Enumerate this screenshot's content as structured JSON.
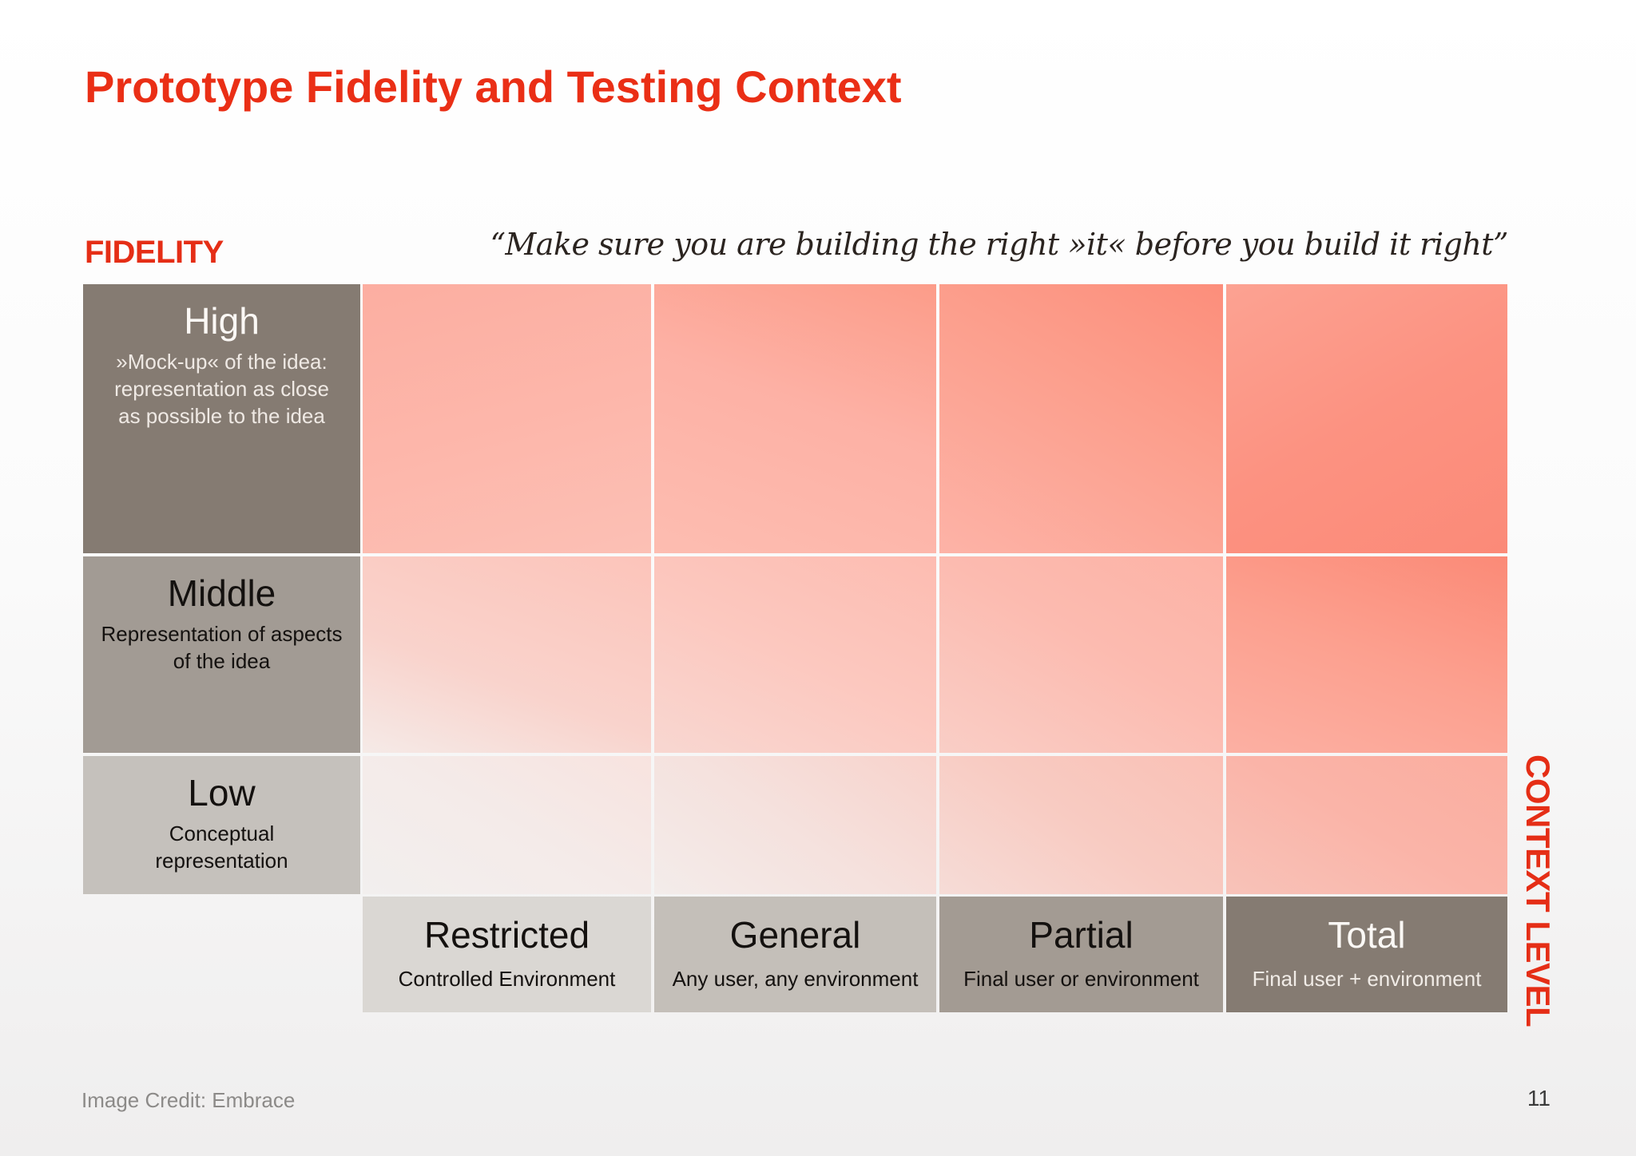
{
  "title": "Prototype Fidelity and Testing Context",
  "fidelity_axis_label": "FIDELITY",
  "context_axis_label": "CONTEXT LEVEL",
  "quote": "“Make sure you are building the right »it« before you build it right”",
  "fidelity_levels": [
    {
      "name": "High",
      "description": "»Mock-up« of the idea: representation as close as possible to the idea"
    },
    {
      "name": "Middle",
      "description": "Representation of aspects of the idea"
    },
    {
      "name": "Low",
      "description": "Conceptual representation"
    }
  ],
  "context_levels": [
    {
      "name": "Restricted",
      "description": "Controlled Environment"
    },
    {
      "name": "General",
      "description": "Any user, any environment"
    },
    {
      "name": "Partial",
      "description": "Final user or environment"
    },
    {
      "name": "Total",
      "description": "Final user + environment"
    }
  ],
  "colors": {
    "accent_red": "#ea2f16",
    "gradient_light": "#f4efed",
    "gradient_strong": "#fc8a76"
  },
  "footer": {
    "credit": "Image Credit: Embrace",
    "page_number": "11"
  }
}
